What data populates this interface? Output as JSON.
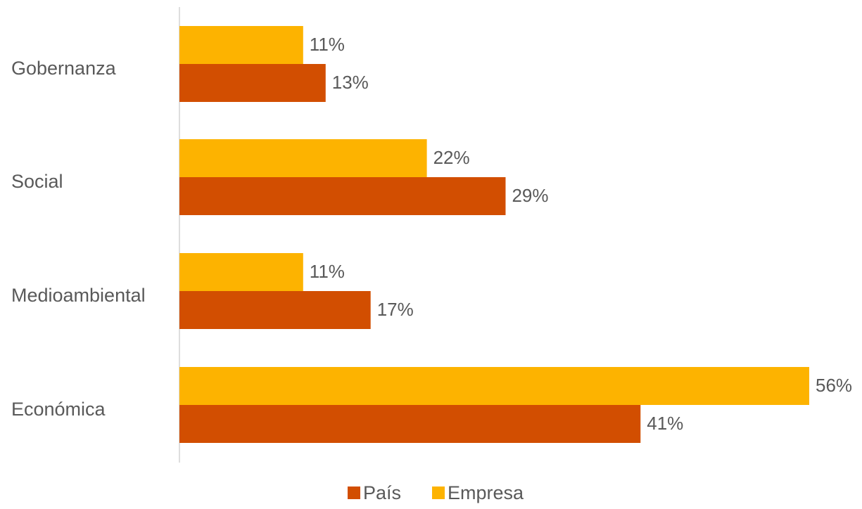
{
  "chart_data": {
    "type": "bar",
    "orientation": "horizontal",
    "categories": [
      "Gobernanza",
      "Social",
      "Medioambiental",
      "Económica"
    ],
    "series": [
      {
        "name": "Empresa",
        "values": [
          11,
          22,
          11,
          56
        ],
        "labels": [
          "11%",
          "22%",
          "11%",
          "56%"
        ],
        "color": "#FDB300"
      },
      {
        "name": "País",
        "values": [
          13,
          29,
          17,
          41
        ],
        "labels": [
          "13%",
          "29%",
          "17%",
          "41%"
        ],
        "color": "#D24E01"
      }
    ],
    "unit": "%",
    "xlim": [
      0,
      56
    ],
    "grid": false,
    "legend": {
      "placement": "bottom-center",
      "entries": [
        {
          "name": "País",
          "color": "#D24E01"
        },
        {
          "name": "Empresa",
          "color": "#FDB300"
        }
      ]
    },
    "colors": {
      "label_text": "#595959",
      "axis_line": "#C9C9C9"
    }
  }
}
